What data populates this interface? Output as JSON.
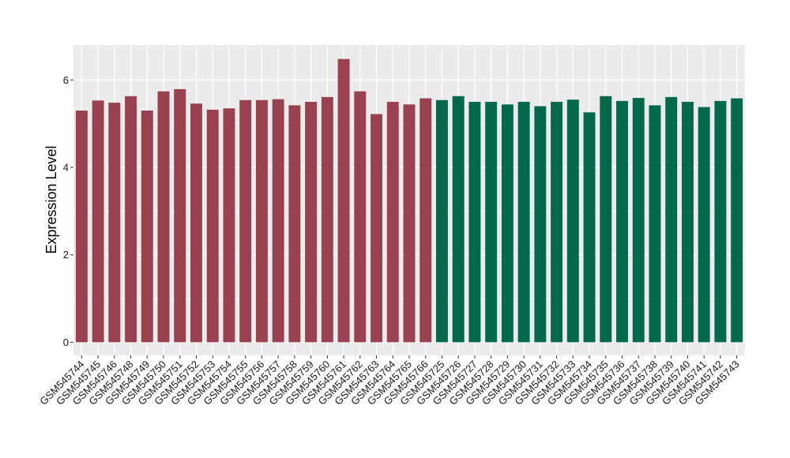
{
  "chart_data": {
    "type": "bar",
    "ylabel": "Expression Level",
    "xlabel": "",
    "ylim": [
      -0.3,
      6.8
    ],
    "yticks": [
      0,
      2,
      4,
      6
    ],
    "grid": true,
    "legend": "none",
    "colors": {
      "group_a": "#9a4150",
      "group_b": "#03694b",
      "panel_bg": "#ebebeb",
      "grid": "#ffffff"
    },
    "categories": [
      "GSM545744",
      "GSM545745",
      "GSM545746",
      "GSM545748",
      "GSM545749",
      "GSM545750",
      "GSM545751",
      "GSM545752",
      "GSM545753",
      "GSM545754",
      "GSM545755",
      "GSM545756",
      "GSM545757",
      "GSM545758",
      "GSM545759",
      "GSM545760",
      "GSM545761",
      "GSM545762",
      "GSM545763",
      "GSM545764",
      "GSM545765",
      "GSM545766",
      "GSM545725",
      "GSM545726",
      "GSM545727",
      "GSM545728",
      "GSM545729",
      "GSM545730",
      "GSM545731",
      "GSM545732",
      "GSM545733",
      "GSM545734",
      "GSM545735",
      "GSM545736",
      "GSM545737",
      "GSM545738",
      "GSM545739",
      "GSM545740",
      "GSM545741",
      "GSM545742",
      "GSM545743"
    ],
    "values": [
      5.3,
      5.53,
      5.48,
      5.63,
      5.3,
      5.74,
      5.79,
      5.46,
      5.32,
      5.35,
      5.54,
      5.54,
      5.56,
      5.42,
      5.5,
      5.61,
      6.48,
      5.74,
      5.22,
      5.5,
      5.44,
      5.58,
      5.54,
      5.63,
      5.5,
      5.5,
      5.44,
      5.5,
      5.4,
      5.5,
      5.55,
      5.26,
      5.63,
      5.52,
      5.59,
      5.42,
      5.61,
      5.5,
      5.38,
      5.52,
      5.58
    ],
    "groups": [
      "a",
      "a",
      "a",
      "a",
      "a",
      "a",
      "a",
      "a",
      "a",
      "a",
      "a",
      "a",
      "a",
      "a",
      "a",
      "a",
      "a",
      "a",
      "a",
      "a",
      "a",
      "a",
      "b",
      "b",
      "b",
      "b",
      "b",
      "b",
      "b",
      "b",
      "b",
      "b",
      "b",
      "b",
      "b",
      "b",
      "b",
      "b",
      "b",
      "b",
      "b"
    ]
  }
}
